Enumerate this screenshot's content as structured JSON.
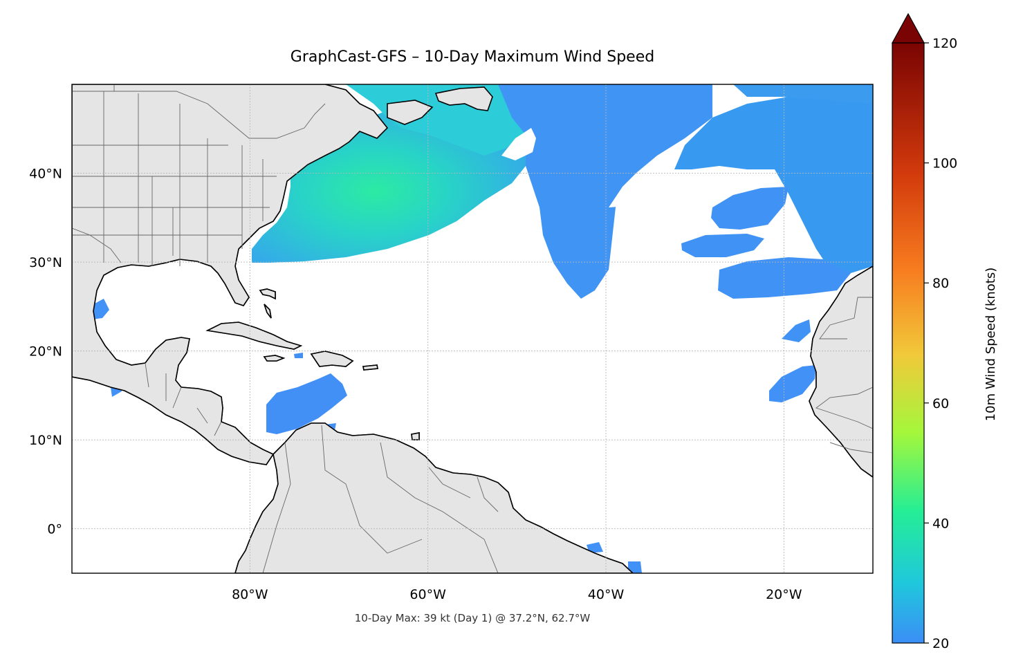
{
  "map": {
    "title": "GraphCast-GFS – 10-Day Maximum Wind Speed",
    "footer": "10-Day Max: 39 kt (Day 1) @ 37.2°N, 62.7°W",
    "extent": {
      "lon": [
        -100,
        -10
      ],
      "lat": [
        -5,
        50
      ]
    },
    "lat_ticks": [
      {
        "value": 40,
        "label": "40°N"
      },
      {
        "value": 30,
        "label": "30°N"
      },
      {
        "value": 20,
        "label": "20°N"
      },
      {
        "value": 10,
        "label": "10°N"
      },
      {
        "value": 0,
        "label": "0°"
      }
    ],
    "lon_ticks": [
      {
        "value": -80,
        "label": "80°W"
      },
      {
        "value": -60,
        "label": "60°W"
      },
      {
        "value": -40,
        "label": "40°W"
      },
      {
        "value": -20,
        "label": "20°W"
      }
    ],
    "gridlines": "dotted",
    "colors": {
      "land": "#e5e5e5",
      "coastline": "#000000",
      "borders": "#666666",
      "ocean": "#ffffff"
    },
    "max_point": {
      "value_kt": 39,
      "day": 1,
      "lat": 37.2,
      "lon": -62.7
    }
  },
  "colorbar": {
    "label": "10m Wind Speed (knots)",
    "min": 20,
    "max": 120,
    "extend": "max",
    "ticks": [
      {
        "value": 20,
        "label": "20"
      },
      {
        "value": 40,
        "label": "40"
      },
      {
        "value": 60,
        "label": "60"
      },
      {
        "value": 80,
        "label": "80"
      },
      {
        "value": 100,
        "label": "100"
      },
      {
        "value": 120,
        "label": "120"
      }
    ],
    "colormap": [
      "#3b8ef6",
      "#1fc8dc",
      "#25ee95",
      "#a4f73b",
      "#f1c93a",
      "#f77d1f",
      "#d33b0c",
      "#a11202",
      "#7a0403"
    ]
  },
  "wind_field": [
    {
      "id": "us-east-coast-storm",
      "color": "#2ad7c3"
    },
    {
      "id": "canada-maritimes",
      "color": "#27cbd8"
    },
    {
      "id": "central-atlantic-plume",
      "color": "#3a92f4"
    },
    {
      "id": "ne-atlantic",
      "color": "#3296f0"
    },
    {
      "id": "caribbean-jet",
      "color": "#3c8df6"
    },
    {
      "id": "off-west-africa",
      "color": "#3c8df6"
    },
    {
      "id": "azores-patches",
      "color": "#3a90f5"
    },
    {
      "id": "great-lakes",
      "color": "#3b8ef6"
    }
  ]
}
